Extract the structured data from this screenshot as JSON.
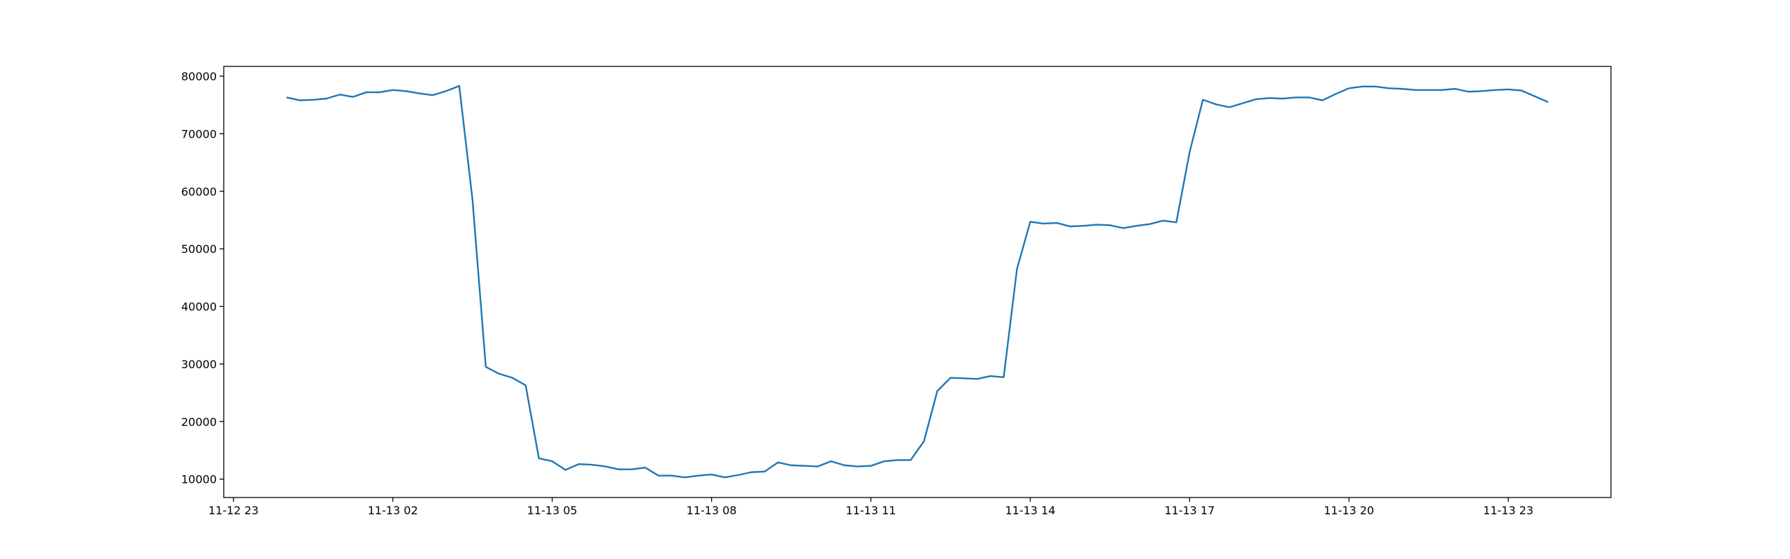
{
  "chart_data": {
    "type": "line",
    "x": [
      "11-13 00:00",
      "11-13 00:15",
      "11-13 00:30",
      "11-13 00:45",
      "11-13 01:00",
      "11-13 01:15",
      "11-13 01:30",
      "11-13 01:45",
      "11-13 02:00",
      "11-13 02:15",
      "11-13 02:30",
      "11-13 02:45",
      "11-13 03:00",
      "11-13 03:15",
      "11-13 03:30",
      "11-13 03:45",
      "11-13 04:00",
      "11-13 04:15",
      "11-13 04:30",
      "11-13 04:45",
      "11-13 05:00",
      "11-13 05:15",
      "11-13 05:30",
      "11-13 05:45",
      "11-13 06:00",
      "11-13 06:15",
      "11-13 06:30",
      "11-13 06:45",
      "11-13 07:00",
      "11-13 07:15",
      "11-13 07:30",
      "11-13 07:45",
      "11-13 08:00",
      "11-13 08:15",
      "11-13 08:30",
      "11-13 08:45",
      "11-13 09:00",
      "11-13 09:15",
      "11-13 09:30",
      "11-13 09:45",
      "11-13 10:00",
      "11-13 10:15",
      "11-13 10:30",
      "11-13 10:45",
      "11-13 11:00",
      "11-13 11:15",
      "11-13 11:30",
      "11-13 11:45",
      "11-13 12:00",
      "11-13 12:15",
      "11-13 12:30",
      "11-13 12:45",
      "11-13 13:00",
      "11-13 13:15",
      "11-13 13:30",
      "11-13 13:45",
      "11-13 14:00",
      "11-13 14:15",
      "11-13 14:30",
      "11-13 14:45",
      "11-13 15:00",
      "11-13 15:15",
      "11-13 15:30",
      "11-13 15:45",
      "11-13 16:00",
      "11-13 16:15",
      "11-13 16:30",
      "11-13 16:45",
      "11-13 17:00",
      "11-13 17:15",
      "11-13 17:30",
      "11-13 17:45",
      "11-13 18:00",
      "11-13 18:15",
      "11-13 18:30",
      "11-13 18:45",
      "11-13 19:00",
      "11-13 19:15",
      "11-13 19:30",
      "11-13 19:45",
      "11-13 20:00",
      "11-13 20:15",
      "11-13 20:30",
      "11-13 20:45",
      "11-13 21:00",
      "11-13 21:15",
      "11-13 21:30",
      "11-13 21:45",
      "11-13 22:00",
      "11-13 22:15",
      "11-13 22:30",
      "11-13 22:45",
      "11-13 23:00",
      "11-13 23:15",
      "11-13 23:30",
      "11-13 23:45"
    ],
    "values": [
      76300,
      75800,
      75900,
      76100,
      76800,
      76400,
      77200,
      77200,
      77600,
      77400,
      77000,
      76700,
      77400,
      78300,
      58500,
      29500,
      28300,
      27600,
      26300,
      13600,
      13100,
      11600,
      12600,
      12500,
      12200,
      11700,
      11700,
      12000,
      10600,
      10600,
      10300,
      10600,
      10800,
      10300,
      10700,
      11200,
      11300,
      12900,
      12400,
      12300,
      12200,
      13100,
      12400,
      12200,
      12300,
      13100,
      13300,
      13300,
      16600,
      25300,
      27600,
      27500,
      27400,
      27900,
      27700,
      46500,
      54700,
      54400,
      54500,
      53900,
      54000,
      54200,
      54100,
      53600,
      54000,
      54300,
      54900,
      54600,
      66800,
      75900,
      75100,
      74600,
      75300,
      76000,
      76200,
      76100,
      76300,
      76300,
      75800,
      76900,
      77900,
      78200,
      78200,
      77900,
      77800,
      77600,
      77600,
      77600,
      77800,
      77300,
      77400,
      77600,
      77700,
      77500,
      76500,
      75500
    ],
    "color": "#1f77b4",
    "xlim": [
      "11-12 22:49",
      "11-14 00:56"
    ],
    "xticks": [
      "11-12 23",
      "11-13 02",
      "11-13 05",
      "11-13 08",
      "11-13 11",
      "11-13 14",
      "11-13 17",
      "11-13 20",
      "11-13 23"
    ],
    "ylim": [
      6800,
      81700
    ],
    "yticks": [
      10000,
      20000,
      30000,
      40000,
      50000,
      60000,
      70000,
      80000
    ]
  }
}
